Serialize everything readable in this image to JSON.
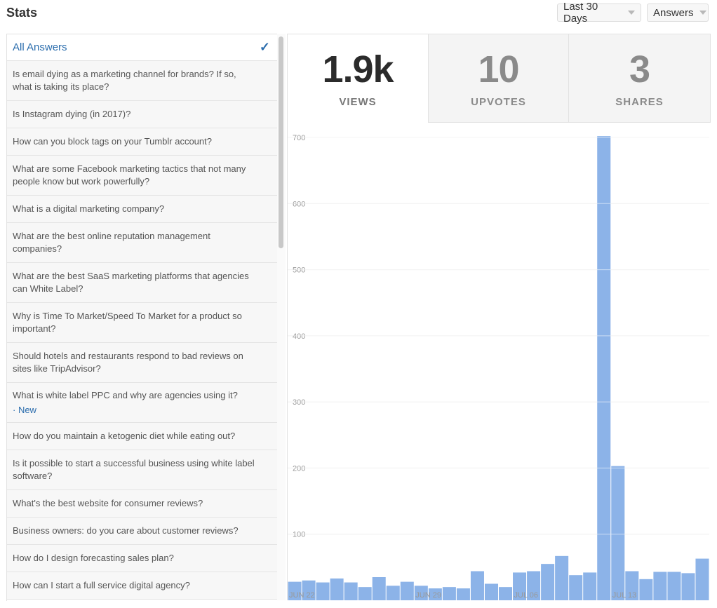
{
  "header": {
    "title": "Stats",
    "range_dropdown": "Last 30 Days",
    "type_dropdown": "Answers"
  },
  "sidebar": {
    "items": [
      {
        "label": "All Answers",
        "active": true
      },
      {
        "label": "Is email dying as a marketing channel for brands? If so, what is taking its place?"
      },
      {
        "label": "Is Instagram dying (in 2017)?"
      },
      {
        "label": "How can you block tags on your Tumblr account?"
      },
      {
        "label": "What are some Facebook marketing tactics that not many people know but work powerfully?"
      },
      {
        "label": "What is a digital marketing company?"
      },
      {
        "label": "What are the best online reputation management companies?"
      },
      {
        "label": "What are the best SaaS marketing platforms that agencies can White Label?"
      },
      {
        "label": "Why is Time To Market/Speed To Market for a product so important?"
      },
      {
        "label": "Should hotels and restaurants respond to bad reviews on sites like TripAdvisor?"
      },
      {
        "label": "What is white label PPC and why are agencies using it?",
        "badge": "· New"
      },
      {
        "label": "How do you maintain a ketogenic diet while eating out?"
      },
      {
        "label": "Is it possible to start a successful business using white label software?"
      },
      {
        "label": "What's the best website for consumer reviews?"
      },
      {
        "label": "Business owners: do you care about customer reviews?"
      },
      {
        "label": "How do I design forecasting sales plan?"
      },
      {
        "label": "How can I start a full service digital agency?"
      }
    ]
  },
  "stats": {
    "views": {
      "value": "1.9k",
      "label": "VIEWS"
    },
    "upvotes": {
      "value": "10",
      "label": "UPVOTES"
    },
    "shares": {
      "value": "3",
      "label": "SHARES"
    }
  },
  "chart_data": {
    "type": "bar",
    "title": "",
    "xlabel": "",
    "ylabel": "",
    "ylim": [
      0,
      700
    ],
    "yticks": [
      100,
      200,
      300,
      400,
      500,
      600,
      700
    ],
    "xtick_labels": [
      {
        "index": 0,
        "label": "JUN 22"
      },
      {
        "index": 9,
        "label": "JUN 29"
      },
      {
        "index": 16,
        "label": "JUL 06"
      },
      {
        "index": 23,
        "label": "JUL 13"
      }
    ],
    "values": [
      28,
      30,
      27,
      33,
      27,
      20,
      35,
      22,
      28,
      22,
      18,
      20,
      18,
      44,
      25,
      20,
      42,
      44,
      55,
      67,
      38,
      42,
      702,
      203,
      44,
      32,
      43,
      43,
      41,
      63
    ],
    "bar_color": "#8cb3e8",
    "grid": true
  },
  "colors": {
    "accent": "#2b6dad",
    "bar": "#8cb3e8"
  }
}
